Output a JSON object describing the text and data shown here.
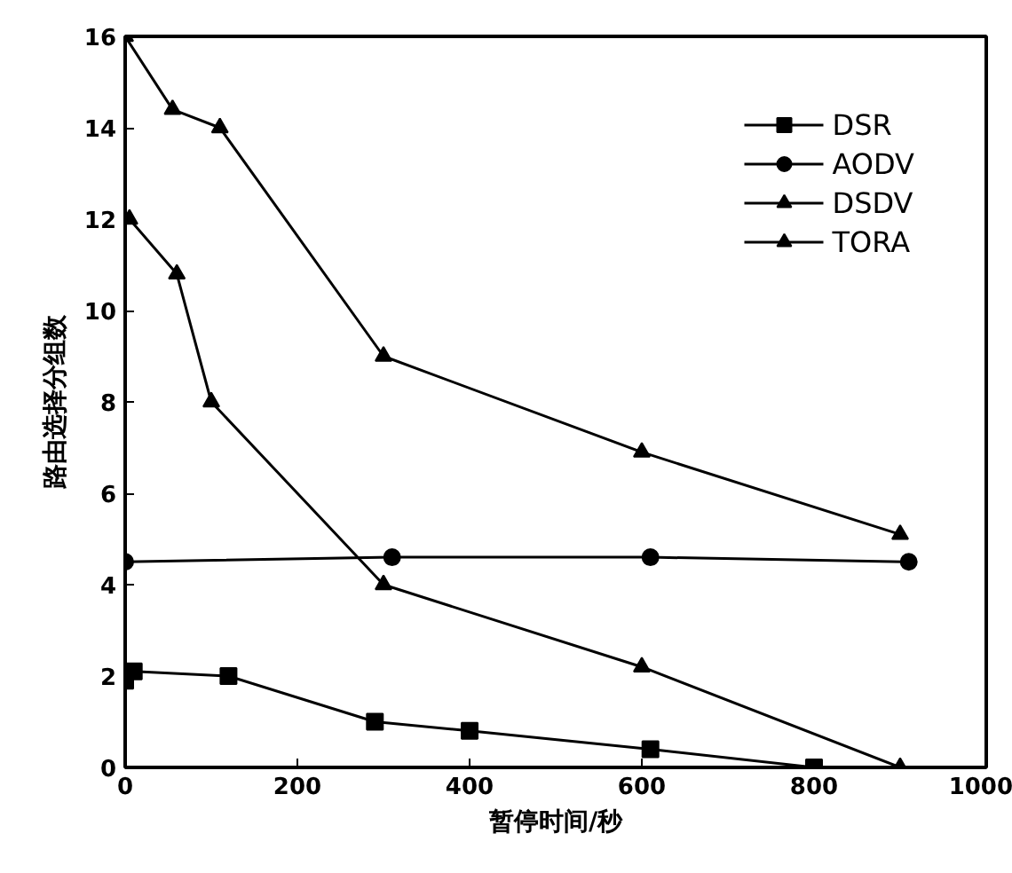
{
  "chart_data": {
    "type": "line",
    "xlabel": "暂停时间/秒",
    "ylabel": "路由选择分组数",
    "xlim": [
      0,
      1000
    ],
    "ylim": [
      0,
      16
    ],
    "xticks": [
      0,
      200,
      400,
      600,
      800,
      1000
    ],
    "yticks": [
      0,
      2,
      4,
      6,
      8,
      10,
      12,
      14,
      16
    ],
    "legend": "top right",
    "grid": false,
    "line_style": "solid",
    "series": [
      {
        "name": "DSR",
        "color": "#000000",
        "marker": "square",
        "x": [
          0,
          10,
          120,
          290,
          400,
          610,
          800
        ],
        "values": [
          1.9,
          2.1,
          2.0,
          1.0,
          0.8,
          0.4,
          0.0
        ]
      },
      {
        "name": "AODV",
        "color": "#000000",
        "marker": "circle",
        "x": [
          0,
          310,
          610,
          910
        ],
        "values": [
          4.5,
          4.6,
          4.6,
          4.5
        ]
      },
      {
        "name": "DSDV",
        "color": "#000000",
        "marker": "triangle",
        "x": [
          5,
          60,
          100,
          300,
          600,
          900
        ],
        "values": [
          12.0,
          10.8,
          8.0,
          4.0,
          2.2,
          0.0
        ]
      },
      {
        "name": "TORA",
        "color": "#000000",
        "marker": "triangle",
        "x": [
          0,
          55,
          110,
          300,
          600,
          900
        ],
        "values": [
          16,
          14.4,
          14.0,
          9.0,
          6.9,
          5.1
        ]
      }
    ]
  }
}
